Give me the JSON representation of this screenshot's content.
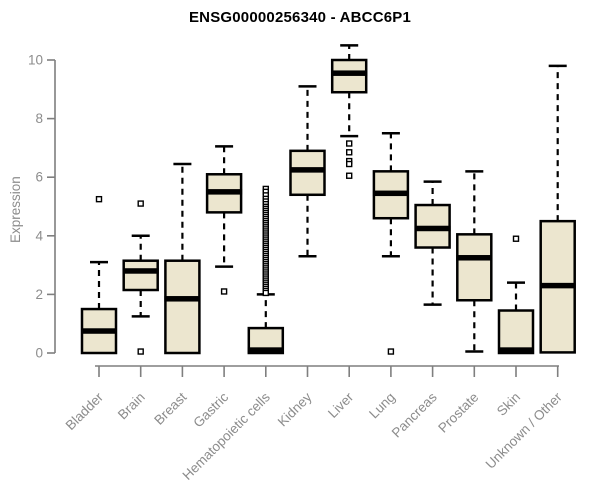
{
  "title": "ENSG00000256340 - ABCC6P1",
  "colors": {
    "box_fill": "#ece6cf",
    "box_border": "#000000",
    "median": "#000000",
    "whisker": "#000000",
    "outlier_fill": "#ffffff",
    "axis": "#7f7f7f",
    "tick_label": "#8c8c8c",
    "title_color": "#000000"
  },
  "chart_data": {
    "type": "box",
    "title": "ENSG00000256340 - ABCC6P1",
    "xlabel": "",
    "ylabel": "Expression",
    "ylim": [
      0,
      10
    ],
    "yticks": [
      0,
      2,
      4,
      6,
      8,
      10
    ],
    "grid": false,
    "legend": null,
    "categories": [
      "Bladder",
      "Brain",
      "Breast",
      "Gastric",
      "Hematopoietic cells",
      "Kidney",
      "Liver",
      "Lung",
      "Pancreas",
      "Prostate",
      "Skin",
      "Unknown / Other"
    ],
    "boxes": [
      {
        "label": "Bladder",
        "whisker_low": 0,
        "q1": 0,
        "median": 0.75,
        "q3": 1.5,
        "whisker_high": 3.1,
        "outliers": [
          5.25
        ]
      },
      {
        "label": "Brain",
        "whisker_low": 1.25,
        "q1": 2.15,
        "median": 2.8,
        "q3": 3.15,
        "whisker_high": 4.0,
        "outliers": [
          5.1,
          0.05
        ]
      },
      {
        "label": "Breast",
        "whisker_low": 0,
        "q1": 0,
        "median": 1.85,
        "q3": 3.15,
        "whisker_high": 6.45,
        "outliers": []
      },
      {
        "label": "Gastric",
        "whisker_low": 2.95,
        "q1": 4.8,
        "median": 5.5,
        "q3": 6.1,
        "whisker_high": 7.05,
        "outliers": [
          2.1
        ]
      },
      {
        "label": "Hematopoietic cells",
        "whisker_low": 0,
        "q1": 0,
        "median": 0.1,
        "q3": 0.85,
        "whisker_high": 2.0,
        "outliers": [
          5.6,
          5.5,
          5.38,
          5.26,
          5.17,
          5.08,
          4.99,
          4.92,
          4.85,
          4.78,
          4.71,
          4.64,
          4.57,
          4.5,
          4.43,
          4.36,
          4.29,
          4.22,
          4.15,
          4.08,
          4.01,
          3.94,
          3.87,
          3.8,
          3.73,
          3.66,
          3.59,
          3.52,
          3.45,
          3.38,
          3.31,
          3.24,
          3.17,
          3.1,
          3.03,
          2.96,
          2.89,
          2.82,
          2.75,
          2.68,
          2.61,
          2.54,
          2.47,
          2.4,
          2.33,
          2.26,
          2.19,
          2.12,
          2.05
        ]
      },
      {
        "label": "Kidney",
        "whisker_low": 3.3,
        "q1": 5.4,
        "median": 6.25,
        "q3": 6.9,
        "whisker_high": 9.1,
        "outliers": []
      },
      {
        "label": "Liver",
        "whisker_low": 7.4,
        "q1": 8.9,
        "median": 9.55,
        "q3": 10.0,
        "whisker_high": 10.5,
        "outliers": [
          7.15,
          6.85,
          6.55,
          6.45,
          6.05
        ]
      },
      {
        "label": "Lung",
        "whisker_low": 3.3,
        "q1": 4.6,
        "median": 5.45,
        "q3": 6.2,
        "whisker_high": 7.5,
        "outliers": [
          0.05
        ]
      },
      {
        "label": "Pancreas",
        "whisker_low": 1.65,
        "q1": 3.6,
        "median": 4.25,
        "q3": 5.05,
        "whisker_high": 5.85,
        "outliers": []
      },
      {
        "label": "Prostate",
        "whisker_low": 0.05,
        "q1": 1.8,
        "median": 3.25,
        "q3": 4.05,
        "whisker_high": 6.2,
        "outliers": []
      },
      {
        "label": "Skin",
        "whisker_low": 0,
        "q1": 0,
        "median": 0.1,
        "q3": 1.45,
        "whisker_high": 2.4,
        "outliers": [
          3.9
        ]
      },
      {
        "label": "Unknown / Other",
        "whisker_low": 0,
        "q1": 0.02,
        "median": 2.3,
        "q3": 4.5,
        "whisker_high": 9.8,
        "outliers": []
      }
    ]
  }
}
